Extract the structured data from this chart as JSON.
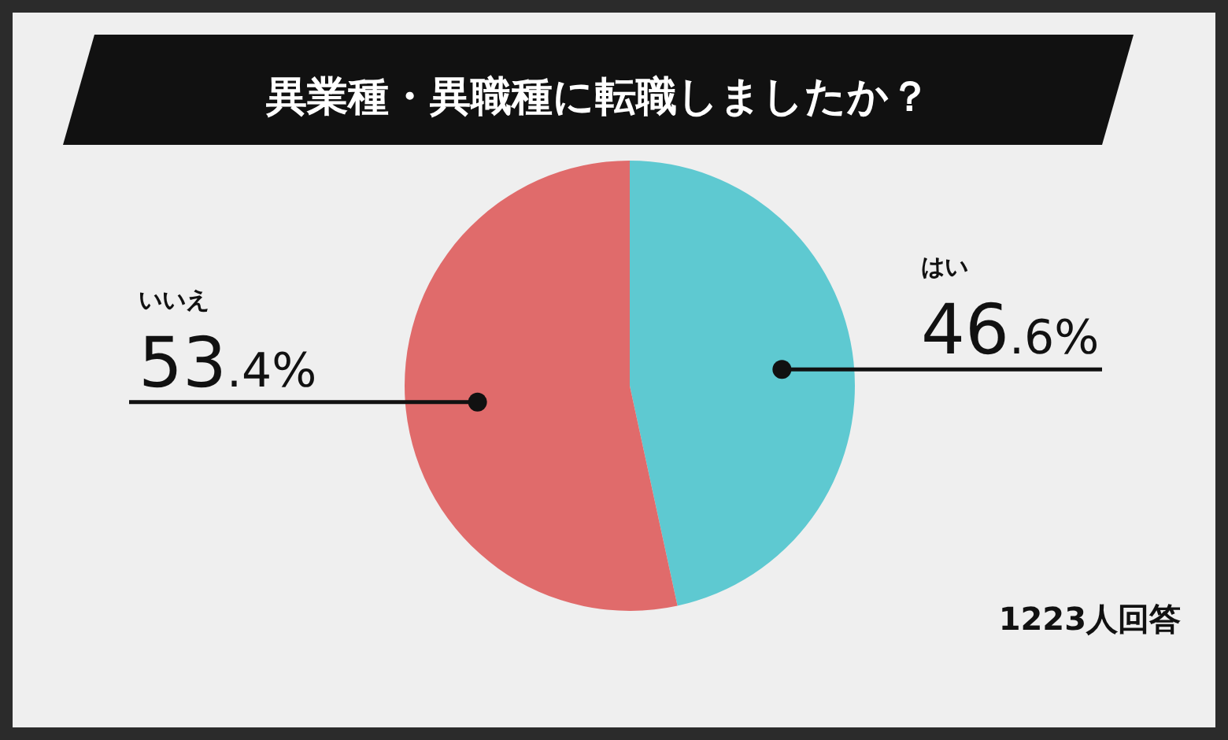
{
  "chart_data": {
    "type": "pie",
    "title": "異業種・異職種に転職しましたか？",
    "categories": [
      "はい",
      "いいえ"
    ],
    "values": [
      46.6,
      53.4
    ],
    "colors": [
      "#5ec9d1",
      "#e06b6b"
    ],
    "value_labels": [
      "46.6%",
      "53.4%"
    ],
    "annotations": [
      "1223人回答"
    ]
  }
}
